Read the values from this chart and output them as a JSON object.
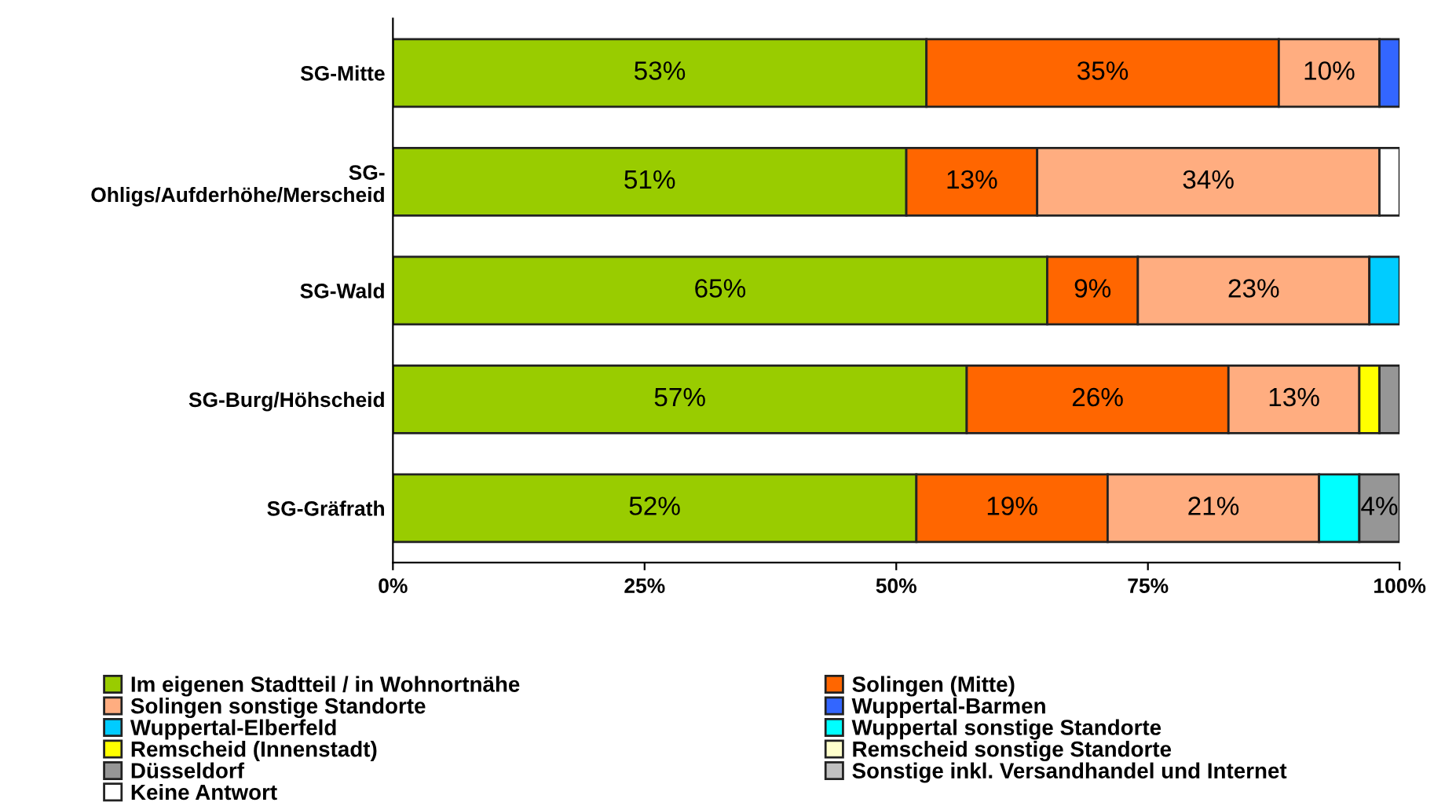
{
  "chart_data": {
    "type": "bar",
    "orientation": "horizontal",
    "stacked": true,
    "categories": [
      "SG-Mitte",
      "SG-\nOhligs/Aufderhöhe/Merscheid",
      "SG-Wald",
      "SG-Burg/Höhscheid",
      "SG-Gräfrath"
    ],
    "series": [
      {
        "name": "Im eigenen Stadtteil / in Wohnortnähe",
        "color": "#99cc00",
        "values": [
          53,
          51,
          65,
          57,
          52
        ],
        "value_labels": [
          "53%",
          "51%",
          "65%",
          "57%",
          "52%"
        ]
      },
      {
        "name": "Solingen (Mitte)",
        "color": "#ff6600",
        "values": [
          35,
          13,
          9,
          26,
          19
        ],
        "value_labels": [
          "35%",
          "13%",
          "9%",
          "26%",
          "19%"
        ]
      },
      {
        "name": "Solingen sonstige Standorte",
        "color": "#ffad80",
        "values": [
          10,
          34,
          23,
          13,
          21
        ],
        "value_labels": [
          "10%",
          "34%",
          "23%",
          "13%",
          "21%"
        ]
      },
      {
        "name": "Wuppertal-Barmen",
        "color": "#3366ff",
        "values": [
          2,
          null,
          null,
          null,
          null
        ]
      },
      {
        "name": "Wuppertal-Elberfeld",
        "color": "#00ccff",
        "values": [
          null,
          null,
          3,
          null,
          null
        ]
      },
      {
        "name": "Wuppertal sonstige Standorte",
        "color": "#00ffff",
        "values": [
          null,
          null,
          null,
          null,
          4
        ]
      },
      {
        "name": "Remscheid (Innenstadt)",
        "color": "#ffff00",
        "values": [
          null,
          null,
          null,
          2,
          null
        ]
      },
      {
        "name": "Remscheid sonstige Standorte",
        "color": "#ffffcc",
        "values": [
          null,
          null,
          null,
          null,
          null
        ]
      },
      {
        "name": "Düsseldorf",
        "color": "#969696",
        "values": [
          null,
          null,
          null,
          2,
          4
        ],
        "value_labels": [
          null,
          null,
          null,
          null,
          "4%"
        ]
      },
      {
        "name": "Sonstige inkl. Versandhandel und Internet",
        "color": "#c0c0c0",
        "values": [
          null,
          null,
          null,
          null,
          null
        ]
      },
      {
        "name": "Keine Antwort",
        "color": "#ffffff",
        "values": [
          null,
          2,
          null,
          null,
          null
        ]
      }
    ],
    "xlim": [
      0,
      100
    ],
    "xticks": [
      {
        "value": 0,
        "label": "0%"
      },
      {
        "value": 25,
        "label": "25%"
      },
      {
        "value": 50,
        "label": "50%"
      },
      {
        "value": 75,
        "label": "75%"
      },
      {
        "value": 100,
        "label": "100%"
      }
    ],
    "grid": false,
    "legend": "bottom"
  }
}
